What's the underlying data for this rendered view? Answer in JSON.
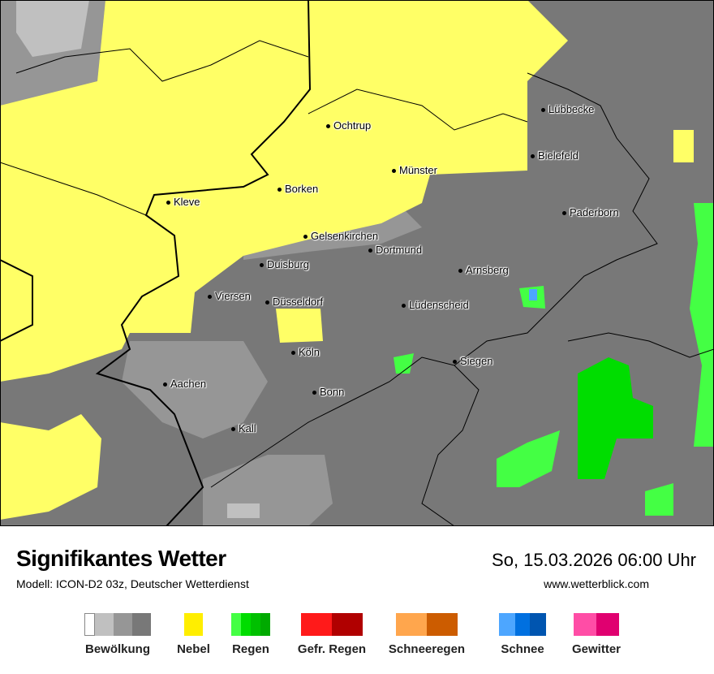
{
  "header": {
    "title": "Signifikantes Wetter",
    "model": "Modell: ICON-D2 03z, Deutscher Wetterdienst",
    "datetime": "So, 15.03.2026 06:00 Uhr",
    "website": "www.wetterblick.com"
  },
  "cities": [
    "Ochtrup",
    "Lübbecke",
    "Bielefeld",
    "Münster",
    "Borken",
    "Kleve",
    "Paderborn",
    "Gelsenkirchen",
    "Dortmund",
    "Duisburg",
    "Arnsberg",
    "Viersen",
    "Düsseldorf",
    "Lüdenscheid",
    "Köln",
    "Siegen",
    "Aachen",
    "Bonn",
    "Kall"
  ],
  "legend": [
    {
      "label": "Bewölkung",
      "colors": [
        "#ffffff",
        "#c0c0c0",
        "#969696",
        "#787878"
      ]
    },
    {
      "label": "Nebel",
      "colors": [
        "#ffee00"
      ]
    },
    {
      "label": "Regen",
      "colors": [
        "#44ff44",
        "#00dd00",
        "#00c000",
        "#00aa00"
      ]
    },
    {
      "label": "Gefr. Regen",
      "colors": [
        "#ff1a1a",
        "#b00000"
      ]
    },
    {
      "label": "Schneeregen",
      "colors": [
        "#ffa64d",
        "#cc5c00"
      ]
    },
    {
      "label": "Schnee",
      "colors": [
        "#4da6ff",
        "#0070e0",
        "#0055b0"
      ]
    },
    {
      "label": "Gewitter",
      "colors": [
        "#ff4da6",
        "#e00070"
      ]
    }
  ],
  "map_colors": {
    "cloud": "#787878",
    "fog": "#ffff66",
    "rain": "#00dd00",
    "snow": "#4da6ff"
  }
}
